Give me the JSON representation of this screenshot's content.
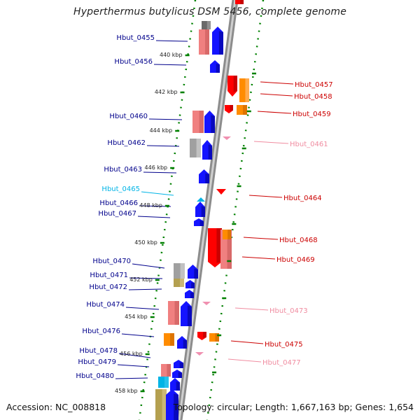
{
  "title": "Hyperthermus butylicus DSM 5456, complete genome",
  "footer": {
    "accession": "Accession: NC_008818",
    "summary": "Topology: circular; Length: 1,667,163 bp; Genes: 1,654"
  },
  "colors": {
    "left_label": "#00008b",
    "left_label_light": "#00b4e6",
    "right_label": "#cc0000",
    "right_label_light": "#f08ca0",
    "backbone": "#a0a0a0",
    "ruler_dots": "#008000"
  },
  "ruler_labels": [
    "440 kbp",
    "442 kbp",
    "444 kbp",
    "446 kbp",
    "448 kbp",
    "450 kbp",
    "452 kbp",
    "454 kbp",
    "456 kbp",
    "458 kbp"
  ],
  "left_gene_labels": [
    {
      "name": "Hbut_0455",
      "style": "dark"
    },
    {
      "name": "Hbut_0456",
      "style": "dark"
    },
    {
      "name": "Hbut_0460",
      "style": "dark"
    },
    {
      "name": "Hbut_0462",
      "style": "dark"
    },
    {
      "name": "Hbut_0463",
      "style": "dark"
    },
    {
      "name": "Hbut_0465",
      "style": "light"
    },
    {
      "name": "Hbut_0466",
      "style": "dark"
    },
    {
      "name": "Hbut_0467",
      "style": "dark"
    },
    {
      "name": "Hbut_0470",
      "style": "dark"
    },
    {
      "name": "Hbut_0471",
      "style": "dark"
    },
    {
      "name": "Hbut_0472",
      "style": "dark"
    },
    {
      "name": "Hbut_0474",
      "style": "dark"
    },
    {
      "name": "Hbut_0476",
      "style": "dark"
    },
    {
      "name": "Hbut_0478",
      "style": "dark"
    },
    {
      "name": "Hbut_0479",
      "style": "dark"
    },
    {
      "name": "Hbut_0480",
      "style": "dark"
    }
  ],
  "right_gene_labels": [
    {
      "name": "Hbut_0457",
      "style": "dark"
    },
    {
      "name": "Hbut_0458",
      "style": "dark"
    },
    {
      "name": "Hbut_0459",
      "style": "dark"
    },
    {
      "name": "Hbut_0461",
      "style": "light"
    },
    {
      "name": "Hbut_0464",
      "style": "dark"
    },
    {
      "name": "Hbut_0468",
      "style": "dark"
    },
    {
      "name": "Hbut_0469",
      "style": "dark"
    },
    {
      "name": "Hbut_0473",
      "style": "light"
    },
    {
      "name": "Hbut_0475",
      "style": "dark"
    },
    {
      "name": "Hbut_0477",
      "style": "light"
    }
  ]
}
